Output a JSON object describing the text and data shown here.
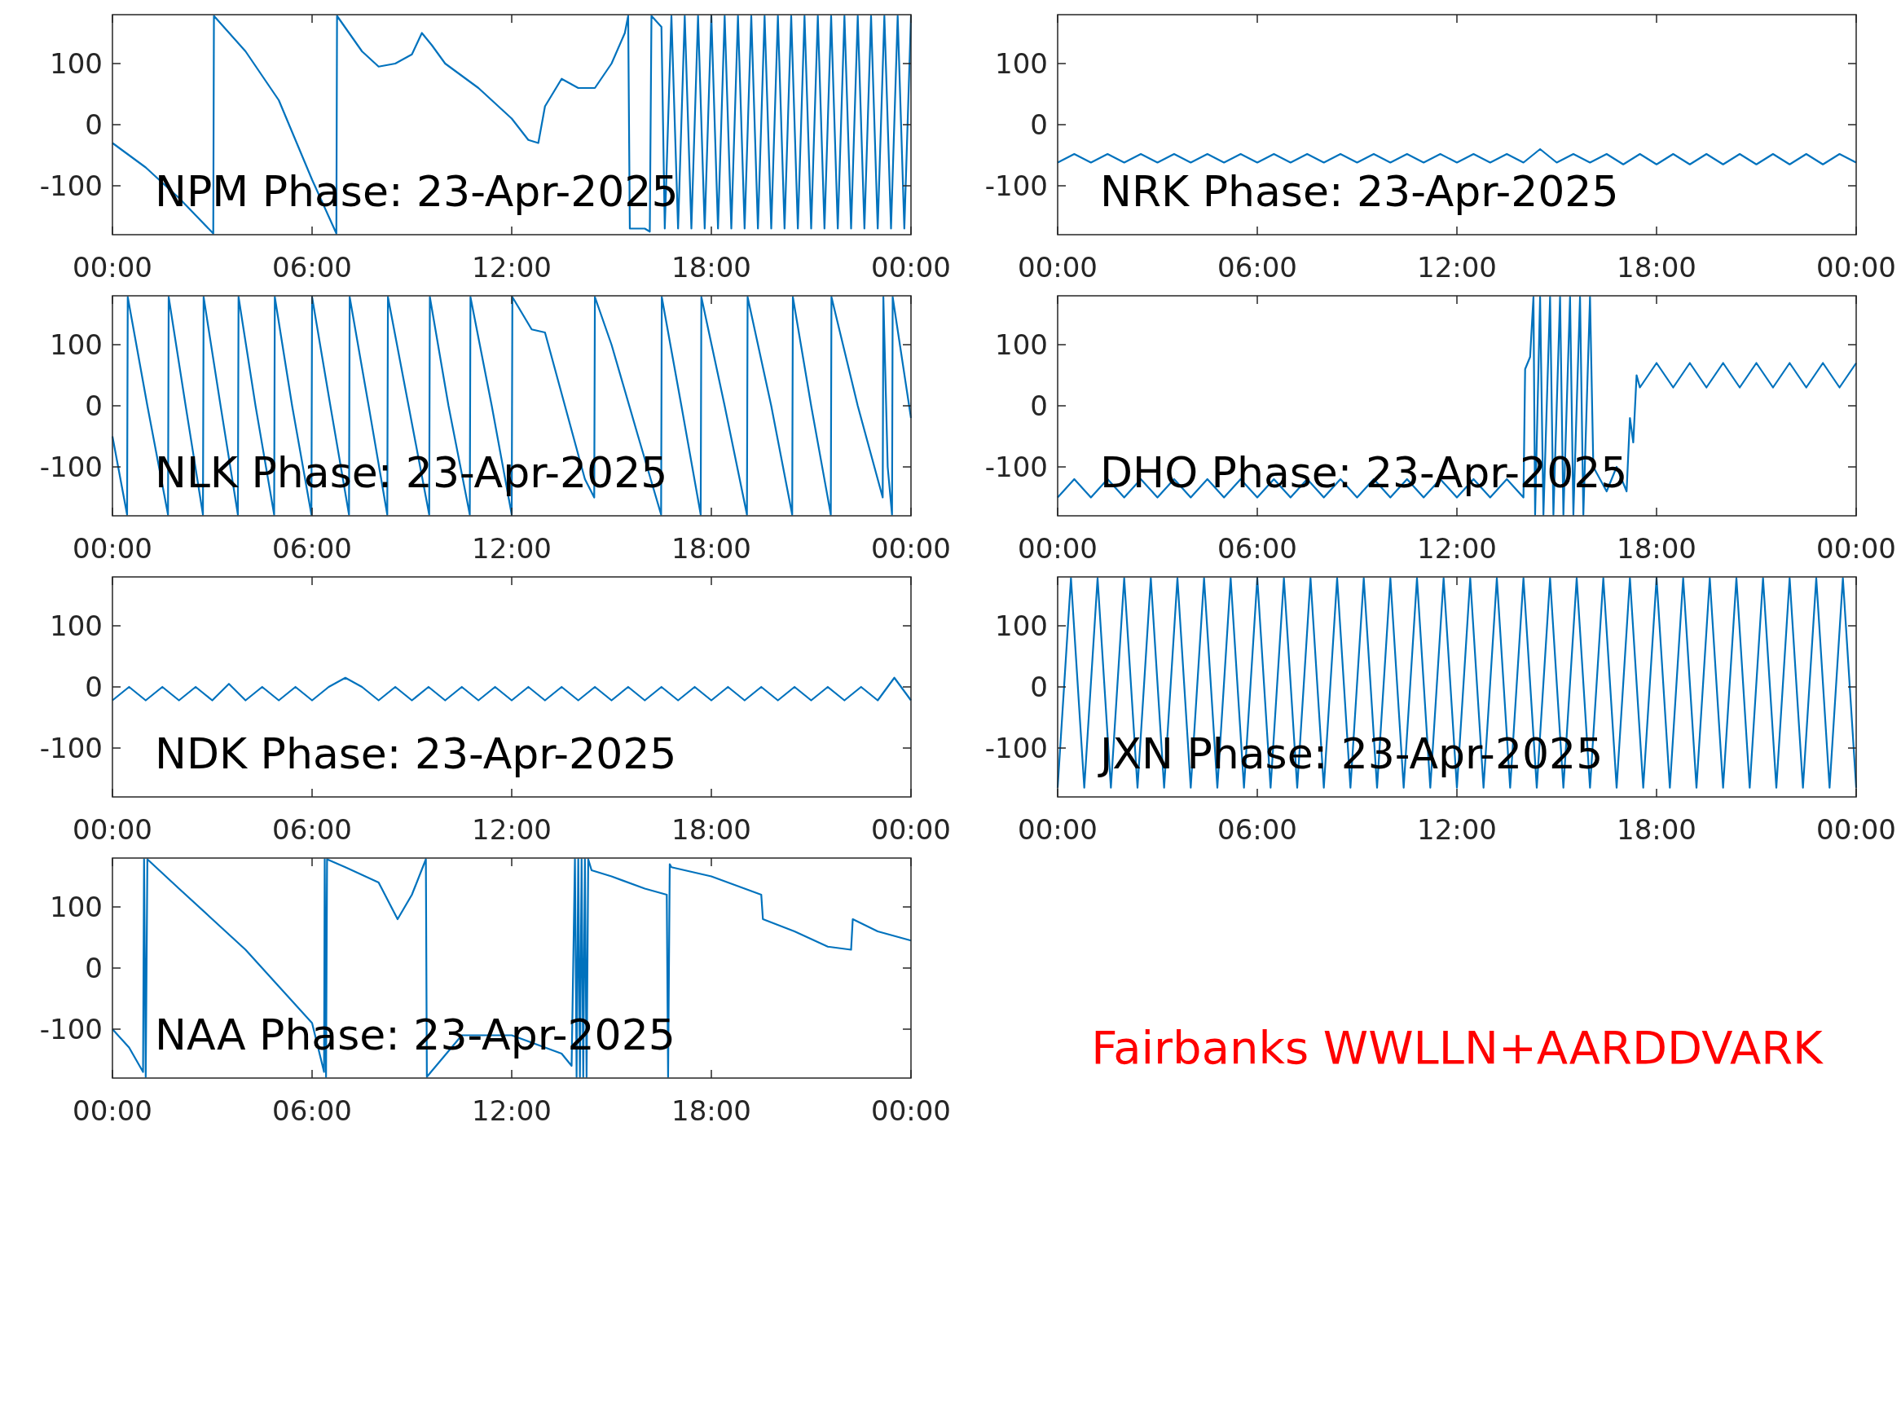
{
  "chart_data": [
    {
      "type": "line",
      "title": "NPM Phase: 23-Apr-2025",
      "xlim": [
        0,
        24
      ],
      "xticks": [
        {
          "value": 0,
          "label": "00:00"
        },
        {
          "value": 6,
          "label": "06:00"
        },
        {
          "value": 12,
          "label": "12:00"
        },
        {
          "value": 18,
          "label": "18:00"
        },
        {
          "value": 24,
          "label": "00:00"
        }
      ],
      "ylim": [
        -180,
        180
      ],
      "yticks": [
        -100,
        0,
        100
      ],
      "series": [
        {
          "color": "#0072bd",
          "x": [
            0,
            1,
            2,
            3.03,
            3.05,
            4,
            5,
            6,
            6.73,
            6.75,
            7.5,
            8,
            8.5,
            9,
            9.3,
            9.6,
            10,
            11,
            12,
            12.5,
            12.8,
            13,
            13.5,
            14,
            14.5,
            15,
            15.4,
            15.5,
            15.55,
            16,
            16.15,
            16.2,
            16.5,
            16.6,
            16.8,
            17,
            17.2,
            17.4,
            17.6,
            17.8,
            18,
            18.2,
            18.4,
            18.6,
            18.8,
            19,
            19.2,
            19.4,
            19.6,
            19.8,
            20,
            20.2,
            20.4,
            20.6,
            20.8,
            21,
            21.2,
            21.4,
            21.6,
            21.8,
            22,
            22.2,
            22.4,
            22.6,
            22.8,
            23,
            23.2,
            23.4,
            23.6,
            23.8,
            24
          ],
          "values": [
            -30,
            -70,
            -120,
            -178,
            178,
            120,
            40,
            -90,
            -178,
            178,
            120,
            95,
            100,
            115,
            150,
            130,
            100,
            60,
            10,
            -25,
            -30,
            30,
            75,
            60,
            60,
            100,
            150,
            178,
            -170,
            -170,
            -175,
            178,
            160,
            -170,
            178,
            -170,
            178,
            -170,
            178,
            -170,
            178,
            -170,
            178,
            -170,
            178,
            -170,
            178,
            -170,
            178,
            -170,
            178,
            -170,
            178,
            -170,
            178,
            -170,
            178,
            -170,
            178,
            -170,
            178,
            -170,
            178,
            -170,
            178,
            -170,
            178,
            -170,
            178,
            -170,
            178
          ]
        }
      ]
    },
    {
      "type": "line",
      "title": "NRK Phase: 23-Apr-2025",
      "xlim": [
        0,
        24
      ],
      "xticks": [
        {
          "value": 0,
          "label": "00:00"
        },
        {
          "value": 6,
          "label": "06:00"
        },
        {
          "value": 12,
          "label": "12:00"
        },
        {
          "value": 18,
          "label": "18:00"
        },
        {
          "value": 24,
          "label": "00:00"
        }
      ],
      "ylim": [
        -180,
        180
      ],
      "yticks": [
        -100,
        0,
        100
      ],
      "series": [
        {
          "color": "#0072bd",
          "x": [
            0,
            0.5,
            1,
            1.5,
            2,
            2.5,
            3,
            3.5,
            4,
            4.5,
            5,
            5.5,
            6,
            6.5,
            7,
            7.5,
            8,
            8.5,
            9,
            9.5,
            10,
            10.5,
            11,
            11.5,
            12,
            12.5,
            13,
            13.5,
            14,
            14.5,
            15,
            15.5,
            16,
            16.5,
            17,
            17.5,
            18,
            18.5,
            19,
            19.5,
            20,
            20.5,
            21,
            21.5,
            22,
            22.5,
            23,
            23.5,
            24
          ],
          "values": [
            -62,
            -48,
            -62,
            -48,
            -62,
            -48,
            -62,
            -48,
            -62,
            -48,
            -62,
            -48,
            -62,
            -48,
            -62,
            -48,
            -62,
            -48,
            -62,
            -48,
            -62,
            -48,
            -62,
            -48,
            -62,
            -48,
            -62,
            -48,
            -62,
            -40,
            -62,
            -48,
            -62,
            -48,
            -65,
            -48,
            -65,
            -48,
            -65,
            -48,
            -65,
            -48,
            -65,
            -48,
            -65,
            -48,
            -65,
            -48,
            -62
          ]
        }
      ]
    },
    {
      "type": "line",
      "title": "NLK Phase: 23-Apr-2025",
      "xlim": [
        0,
        24
      ],
      "xticks": [
        {
          "value": 0,
          "label": "00:00"
        },
        {
          "value": 6,
          "label": "06:00"
        },
        {
          "value": 12,
          "label": "12:00"
        },
        {
          "value": 18,
          "label": "18:00"
        },
        {
          "value": 24,
          "label": "00:00"
        }
      ],
      "ylim": [
        -180,
        180
      ],
      "yticks": [
        -100,
        0,
        100
      ],
      "series": [
        {
          "color": "#0072bd",
          "x": [
            0,
            0.44,
            0.46,
            1.05,
            1.67,
            1.69,
            2.2,
            2.72,
            2.74,
            3.25,
            3.77,
            3.79,
            4.3,
            4.86,
            4.88,
            5.4,
            5.98,
            6.0,
            6.55,
            7.11,
            7.13,
            7.7,
            8.26,
            8.28,
            8.9,
            9.52,
            9.54,
            10.1,
            10.74,
            10.76,
            11.4,
            12.0,
            12.02,
            12.6,
            13.0,
            13.6,
            14.2,
            14.48,
            14.5,
            15.0,
            15.8,
            16.49,
            16.51,
            17.1,
            17.68,
            17.7,
            18.4,
            19.07,
            19.09,
            19.8,
            20.43,
            20.45,
            21.0,
            21.59,
            21.61,
            22.4,
            23.15,
            23.17,
            23.3,
            23.43,
            23.45,
            24
          ],
          "values": [
            -50,
            -178,
            178,
            0,
            -178,
            178,
            0,
            -178,
            178,
            0,
            -178,
            178,
            0,
            -178,
            178,
            0,
            -178,
            178,
            0,
            -178,
            178,
            0,
            -178,
            178,
            0,
            -178,
            178,
            0,
            -178,
            178,
            0,
            -178,
            178,
            125,
            120,
            0,
            -120,
            -150,
            178,
            100,
            -50,
            -178,
            178,
            0,
            -178,
            178,
            0,
            -178,
            178,
            0,
            -178,
            178,
            0,
            -178,
            178,
            0,
            -150,
            178,
            -100,
            -178,
            178,
            -20
          ]
        }
      ]
    },
    {
      "type": "line",
      "title": "DHO Phase: 23-Apr-2025",
      "xlim": [
        0,
        24
      ],
      "xticks": [
        {
          "value": 0,
          "label": "00:00"
        },
        {
          "value": 6,
          "label": "06:00"
        },
        {
          "value": 12,
          "label": "12:00"
        },
        {
          "value": 18,
          "label": "18:00"
        },
        {
          "value": 24,
          "label": "00:00"
        }
      ],
      "ylim": [
        -180,
        180
      ],
      "yticks": [
        -100,
        0,
        100
      ],
      "series": [
        {
          "color": "#0072bd",
          "x": [
            0,
            0.5,
            1,
            1.5,
            2,
            2.5,
            3,
            3.5,
            4,
            4.5,
            5,
            5.5,
            6,
            6.5,
            7,
            7.5,
            8,
            8.5,
            9,
            9.5,
            10,
            10.5,
            11,
            11.5,
            12,
            12.5,
            13,
            13.5,
            14,
            14.05,
            14.2,
            14.3,
            14.35,
            14.5,
            14.6,
            14.8,
            14.9,
            15.1,
            15.2,
            15.4,
            15.5,
            15.7,
            15.8,
            16.0,
            16.1,
            16.5,
            16.8,
            17.1,
            17.2,
            17.3,
            17.4,
            17.5,
            18,
            18.5,
            19,
            19.5,
            20,
            20.5,
            21,
            21.5,
            22,
            22.5,
            23,
            23.5,
            24
          ],
          "values": [
            -150,
            -120,
            -150,
            -120,
            -150,
            -120,
            -150,
            -120,
            -150,
            -120,
            -150,
            -120,
            -150,
            -120,
            -150,
            -120,
            -150,
            -120,
            -150,
            -120,
            -150,
            -120,
            -150,
            -120,
            -150,
            -120,
            -150,
            -120,
            -150,
            60,
            80,
            178,
            -178,
            178,
            -178,
            178,
            -178,
            178,
            -178,
            178,
            -178,
            178,
            -178,
            178,
            -100,
            -140,
            -100,
            -140,
            -20,
            -60,
            50,
            30,
            70,
            30,
            70,
            30,
            70,
            30,
            70,
            30,
            70,
            30,
            70,
            30,
            70
          ]
        }
      ]
    },
    {
      "type": "line",
      "title": "NDK Phase: 23-Apr-2025",
      "xlim": [
        0,
        24
      ],
      "xticks": [
        {
          "value": 0,
          "label": "00:00"
        },
        {
          "value": 6,
          "label": "06:00"
        },
        {
          "value": 12,
          "label": "12:00"
        },
        {
          "value": 18,
          "label": "18:00"
        },
        {
          "value": 24,
          "label": "00:00"
        }
      ],
      "ylim": [
        -180,
        180
      ],
      "yticks": [
        -100,
        0,
        100
      ],
      "series": [
        {
          "color": "#0072bd",
          "x": [
            0,
            0.5,
            1,
            1.5,
            2,
            2.5,
            3,
            3.5,
            4,
            4.5,
            5,
            5.5,
            6,
            6.5,
            7,
            7.5,
            8,
            8.5,
            9,
            9.5,
            10,
            10.5,
            11,
            11.5,
            12,
            12.5,
            13,
            13.5,
            14,
            14.5,
            15,
            15.5,
            16,
            16.5,
            17,
            17.5,
            18,
            18.5,
            19,
            19.5,
            20,
            20.5,
            21,
            21.5,
            22,
            22.5,
            23,
            23.5,
            24
          ],
          "values": [
            -22,
            0,
            -22,
            0,
            -22,
            0,
            -22,
            5,
            -22,
            0,
            -22,
            0,
            -22,
            0,
            15,
            0,
            -22,
            0,
            -22,
            0,
            -22,
            0,
            -22,
            0,
            -22,
            0,
            -22,
            0,
            -22,
            0,
            -22,
            0,
            -22,
            0,
            -22,
            0,
            -22,
            0,
            -22,
            0,
            -22,
            0,
            -22,
            0,
            -22,
            0,
            -22,
            15,
            -22
          ]
        }
      ]
    },
    {
      "type": "line",
      "title": "JXN Phase: 23-Apr-2025",
      "xlim": [
        0,
        24
      ],
      "xticks": [
        {
          "value": 0,
          "label": "00:00"
        },
        {
          "value": 6,
          "label": "06:00"
        },
        {
          "value": 12,
          "label": "12:00"
        },
        {
          "value": 18,
          "label": "18:00"
        },
        {
          "value": 24,
          "label": "00:00"
        }
      ],
      "ylim": [
        -180,
        180
      ],
      "yticks": [
        -100,
        0,
        100
      ],
      "series": [
        {
          "color": "#0072bd",
          "x": [
            0,
            0.4,
            0.8,
            1.2,
            1.6,
            2,
            2.4,
            2.8,
            3.2,
            3.6,
            4,
            4.4,
            4.8,
            5.2,
            5.6,
            6,
            6.4,
            6.8,
            7.2,
            7.6,
            8,
            8.4,
            8.8,
            9.2,
            9.6,
            10,
            10.4,
            10.8,
            11.2,
            11.6,
            12,
            12.4,
            12.8,
            13.2,
            13.6,
            14,
            14.4,
            14.8,
            15.2,
            15.6,
            16,
            16.4,
            16.8,
            17.2,
            17.6,
            18,
            18.4,
            18.8,
            19.2,
            19.6,
            20,
            20.4,
            20.8,
            21.2,
            21.6,
            22,
            22.4,
            22.8,
            23.2,
            23.6,
            24
          ],
          "values": [
            -165,
            178,
            -165,
            178,
            -165,
            178,
            -165,
            178,
            -165,
            178,
            -165,
            178,
            -165,
            178,
            -165,
            178,
            -165,
            178,
            -165,
            178,
            -165,
            178,
            -165,
            178,
            -165,
            178,
            -165,
            178,
            -165,
            178,
            -165,
            178,
            -165,
            178,
            -165,
            178,
            -165,
            178,
            -165,
            178,
            -165,
            178,
            -165,
            178,
            -165,
            178,
            -165,
            178,
            -165,
            178,
            -165,
            178,
            -165,
            178,
            -165,
            178,
            -165,
            178,
            -165,
            178,
            -165
          ]
        }
      ]
    },
    {
      "type": "line",
      "title": "NAA Phase: 23-Apr-2025",
      "xlim": [
        0,
        24
      ],
      "xticks": [
        {
          "value": 0,
          "label": "00:00"
        },
        {
          "value": 6,
          "label": "06:00"
        },
        {
          "value": 12,
          "label": "12:00"
        },
        {
          "value": 18,
          "label": "18:00"
        },
        {
          "value": 24,
          "label": "00:00"
        }
      ],
      "ylim": [
        -180,
        180
      ],
      "yticks": [
        -100,
        0,
        100
      ],
      "series": [
        {
          "color": "#0072bd",
          "x": [
            0,
            0.5,
            0.92,
            0.95,
            1.0,
            1.05,
            2,
            3,
            4,
            5,
            6,
            6.36,
            6.38,
            6.42,
            6.45,
            7,
            8,
            8.57,
            9,
            9.42,
            9.45,
            10.5,
            12,
            13.5,
            13.8,
            13.9,
            13.95,
            14.0,
            14.05,
            14.1,
            14.15,
            14.2,
            14.25,
            14.3,
            14.4,
            15,
            16,
            16.66,
            16.7,
            16.75,
            16.8,
            18,
            19,
            19.5,
            19.55,
            20.5,
            21.5,
            22.2,
            22.25,
            23,
            24
          ],
          "values": [
            -100,
            -130,
            -170,
            178,
            -178,
            178,
            130,
            80,
            30,
            -30,
            -90,
            -170,
            178,
            -178,
            178,
            165,
            140,
            80,
            120,
            178,
            -178,
            -110,
            -110,
            -140,
            -160,
            178,
            -178,
            178,
            -178,
            178,
            -178,
            178,
            -178,
            178,
            160,
            150,
            130,
            120,
            -178,
            170,
            165,
            150,
            130,
            120,
            80,
            60,
            35,
            30,
            80,
            60,
            45
          ]
        }
      ]
    },
    {
      "type": "other",
      "title": "Fairbanks WWLLN+AARDDVARK",
      "color": "#ff0000"
    }
  ]
}
